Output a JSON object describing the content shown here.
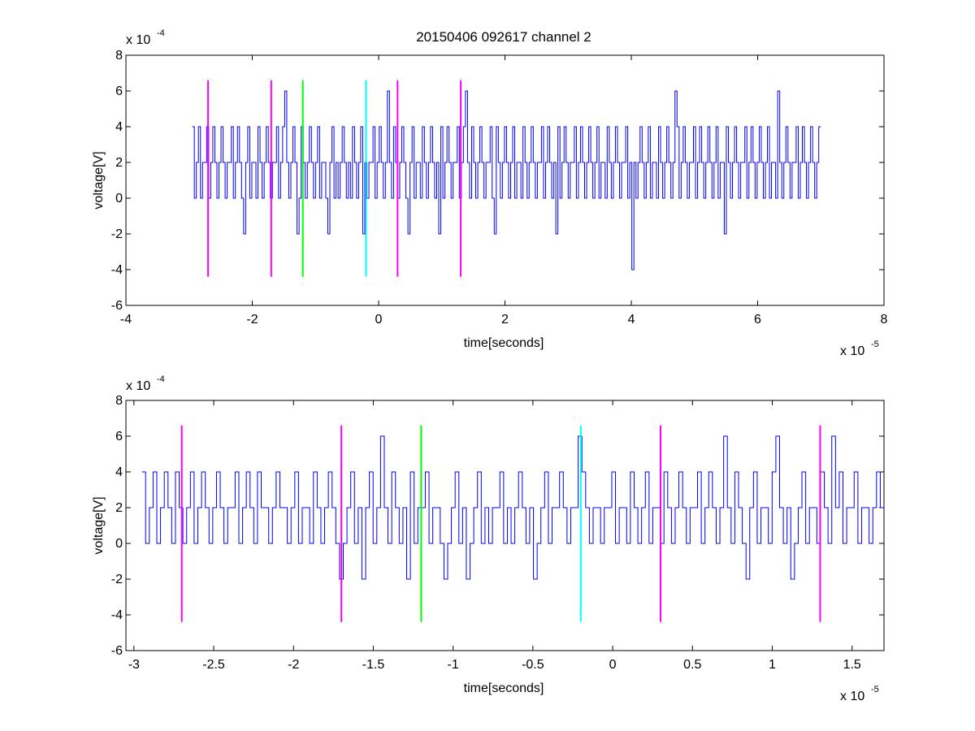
{
  "figure_title": "20150406 092617 channel 2",
  "chart_data": [
    {
      "type": "line",
      "xlabel": "time[seconds]",
      "ylabel": "voltage[V]",
      "x_multiplier": "x 10",
      "x_exponent": "-5",
      "y_multiplier": "x 10",
      "y_exponent": "-4",
      "xlim": [
        -4,
        8
      ],
      "ylim": [
        -6,
        8
      ],
      "xticks": [
        -4,
        -2,
        0,
        2,
        4,
        6,
        8
      ],
      "xtick_labels": [
        "-4",
        "-2",
        "0",
        "2",
        "4",
        "6",
        "8"
      ],
      "yticks": [
        -6,
        -4,
        -2,
        0,
        2,
        4,
        6,
        8
      ],
      "ytick_labels": [
        "-6",
        "-4",
        "-2",
        "0",
        "2",
        "4",
        "6",
        "8"
      ],
      "signal": {
        "color": "#0000ff",
        "x_start": -2.95,
        "x_end": 7.0,
        "values_v_e4": [
          4,
          0,
          2,
          4,
          0,
          2,
          2,
          4,
          0,
          2,
          4,
          2,
          0,
          2,
          4,
          2,
          0,
          2,
          2,
          4,
          0,
          2,
          4,
          2,
          0,
          -2,
          2,
          4,
          0,
          2,
          2,
          0,
          4,
          2,
          0,
          2,
          4,
          2,
          0,
          2,
          2,
          4,
          0,
          2,
          4,
          6,
          2,
          0,
          2,
          4,
          2,
          -2,
          0,
          4,
          2,
          0,
          2,
          4,
          2,
          0,
          2,
          4,
          0,
          2,
          2,
          0,
          -2,
          2,
          4,
          0,
          2,
          0,
          2,
          4,
          2,
          0,
          2,
          0,
          4,
          2,
          0,
          2,
          4,
          -2,
          2,
          0,
          2,
          2,
          4,
          0,
          2,
          4,
          2,
          0,
          2,
          6,
          2,
          0,
          4,
          2,
          0,
          2,
          4,
          2,
          0,
          -2,
          2,
          4,
          0,
          2,
          2,
          0,
          4,
          2,
          0,
          2,
          4,
          2,
          0,
          2,
          -2,
          4,
          0,
          2,
          4,
          2,
          0,
          2,
          2,
          4,
          0,
          2,
          4,
          6,
          2,
          0,
          4,
          2,
          0,
          2,
          4,
          2,
          0,
          2,
          2,
          4,
          0,
          -2,
          4,
          2,
          0,
          2,
          4,
          2,
          0,
          2,
          4,
          0,
          2,
          2,
          0,
          4,
          2,
          0,
          2,
          4,
          2,
          0,
          2,
          2,
          4,
          0,
          2,
          4,
          2,
          0,
          2,
          -2,
          4,
          0,
          2,
          4,
          2,
          0,
          2,
          2,
          4,
          0,
          2,
          4,
          2,
          0,
          2,
          4,
          2,
          0,
          2,
          4,
          0,
          2,
          2,
          0,
          4,
          2,
          0,
          2,
          4,
          2,
          0,
          2,
          2,
          4,
          0,
          2,
          -4,
          2,
          0,
          2,
          4,
          2,
          0,
          2,
          4,
          0,
          2,
          2,
          0,
          4,
          2,
          0,
          2,
          4,
          2,
          0,
          2,
          6,
          4,
          0,
          2,
          4,
          2,
          0,
          2,
          2,
          4,
          0,
          2,
          4,
          2,
          0,
          2,
          4,
          2,
          0,
          2,
          4,
          0,
          2,
          2,
          -2,
          4,
          2,
          0,
          2,
          4,
          2,
          0,
          2,
          2,
          4,
          0,
          2,
          4,
          2,
          0,
          2,
          4,
          2,
          0,
          2,
          4,
          0,
          2,
          2,
          0,
          6,
          2,
          0,
          2,
          4,
          2,
          0,
          2,
          2,
          4,
          0,
          2,
          4,
          2,
          0,
          2,
          4,
          2,
          0,
          2,
          4
        ]
      },
      "markers": [
        {
          "x": -2.7,
          "color": "#ff00ff"
        },
        {
          "x": -1.7,
          "color": "#ff00ff"
        },
        {
          "x": -1.2,
          "color": "#00ff00"
        },
        {
          "x": -0.2,
          "color": "#00ffff"
        },
        {
          "x": 0.3,
          "color": "#ff00ff"
        },
        {
          "x": 1.3,
          "color": "#ff00ff"
        }
      ],
      "marker_y_range": [
        -4.4,
        6.6
      ]
    },
    {
      "type": "line",
      "xlabel": "time[seconds]",
      "ylabel": "voltage[V]",
      "x_multiplier": "x 10",
      "x_exponent": "-5",
      "y_multiplier": "x 10",
      "y_exponent": "-4",
      "xlim": [
        -3.05,
        1.7
      ],
      "ylim": [
        -6,
        8
      ],
      "xticks": [
        -3,
        -2.5,
        -2,
        -1.5,
        -1,
        -0.5,
        0,
        0.5,
        1,
        1.5
      ],
      "xtick_labels": [
        "-3",
        "-2.5",
        "-2",
        "-1.5",
        "-1",
        "-0.5",
        "0",
        "0.5",
        "1",
        "1.5"
      ],
      "yticks": [
        -6,
        -4,
        -2,
        0,
        2,
        4,
        6,
        8
      ],
      "ytick_labels": [
        "-6",
        "-4",
        "-2",
        "0",
        "2",
        "4",
        "6",
        "8"
      ],
      "signal": {
        "color": "#0000ff",
        "x_start": -2.95,
        "x_end": 1.7,
        "values_v_e4": [
          4,
          0,
          2,
          4,
          0,
          2,
          4,
          2,
          0,
          4,
          2,
          0,
          2,
          4,
          0,
          2,
          4,
          2,
          0,
          2,
          4,
          2,
          0,
          2,
          2,
          4,
          0,
          2,
          4,
          2,
          0,
          4,
          2,
          2,
          0,
          2,
          4,
          2,
          2,
          0,
          2,
          4,
          0,
          2,
          2,
          0,
          4,
          2,
          0,
          2,
          4,
          2,
          0,
          -2,
          0,
          2,
          4,
          0,
          2,
          -2,
          2,
          4,
          0,
          2,
          6,
          2,
          0,
          4,
          2,
          0,
          2,
          -2,
          4,
          0,
          2,
          2,
          4,
          0,
          2,
          2,
          0,
          -2,
          0,
          2,
          4,
          0,
          2,
          -2,
          0,
          2,
          4,
          0,
          2,
          0,
          2,
          2,
          4,
          0,
          2,
          0,
          2,
          4,
          2,
          0,
          2,
          -2,
          0,
          2,
          4,
          0,
          2,
          2,
          4,
          2,
          0,
          2,
          2,
          6,
          4,
          2,
          0,
          2,
          2,
          0,
          2,
          2,
          4,
          0,
          2,
          2,
          0,
          4,
          2,
          0,
          2,
          4,
          0,
          2,
          2,
          0,
          4,
          2,
          0,
          2,
          4,
          2,
          0,
          2,
          2,
          4,
          0,
          2,
          4,
          2,
          0,
          2,
          6,
          2,
          0,
          4,
          2,
          0,
          -2,
          2,
          4,
          0,
          2,
          2,
          0,
          4,
          6,
          2,
          0,
          2,
          -2,
          0,
          2,
          4,
          0,
          2,
          2,
          0,
          4,
          2,
          0,
          6,
          2,
          4,
          0,
          2,
          2,
          4,
          0,
          2,
          2,
          0,
          2,
          4,
          2
        ]
      },
      "markers": [
        {
          "x": -2.7,
          "color": "#ff00ff"
        },
        {
          "x": -1.7,
          "color": "#ff00ff"
        },
        {
          "x": -1.2,
          "color": "#00ff00"
        },
        {
          "x": -0.2,
          "color": "#00ffff"
        },
        {
          "x": 0.3,
          "color": "#ff00ff"
        },
        {
          "x": 1.3,
          "color": "#ff00ff"
        }
      ],
      "marker_y_range": [
        -4.4,
        6.6
      ]
    }
  ]
}
